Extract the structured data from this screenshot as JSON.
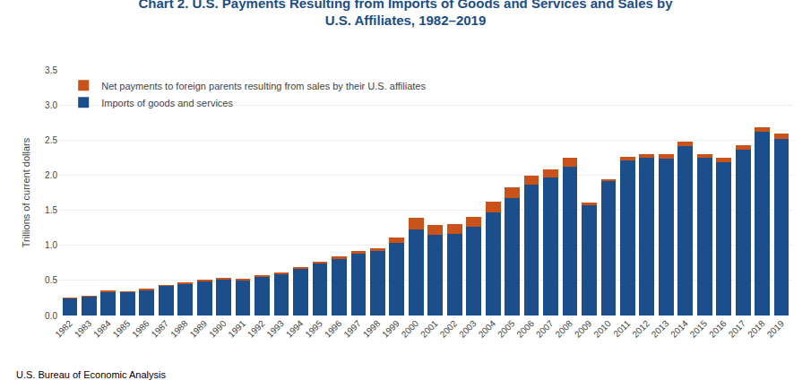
{
  "chart_data": {
    "type": "bar",
    "stacked": true,
    "title": "Chart 2. U.S. Payments Resulting from Imports of Goods and Services and Sales by\nU.S. Affiliates, 1982–2019",
    "ylabel": "Trillions of current dollars",
    "annotations": [
      "U.S. Bureau of Economic Analysis"
    ],
    "categories": [
      1982,
      1983,
      1984,
      1985,
      1986,
      1987,
      1988,
      1989,
      1990,
      1991,
      1992,
      1993,
      1994,
      1995,
      1996,
      1997,
      1998,
      1999,
      2000,
      2001,
      2002,
      2003,
      2004,
      2005,
      2006,
      2007,
      2008,
      2009,
      2010,
      2011,
      2012,
      2013,
      2014,
      2015,
      2016,
      2017,
      2018,
      2019
    ],
    "series": [
      {
        "name": "Imports of goods and services",
        "color": "#1b4e8a",
        "values": [
          0.247,
          0.269,
          0.341,
          0.338,
          0.368,
          0.424,
          0.459,
          0.493,
          0.516,
          0.508,
          0.553,
          0.589,
          0.668,
          0.75,
          0.803,
          0.876,
          0.918,
          1.03,
          1.224,
          1.145,
          1.163,
          1.26,
          1.473,
          1.675,
          1.861,
          1.968,
          2.117,
          1.565,
          1.913,
          2.21,
          2.25,
          2.238,
          2.414,
          2.243,
          2.186,
          2.361,
          2.615,
          2.519
        ]
      },
      {
        "name": "Net payments to foreign parents resulting from sales by their U.S. affiliates",
        "color": "#c8521a",
        "values": [
          0.004,
          0.005,
          0.006,
          0.006,
          0.007,
          0.008,
          0.013,
          0.016,
          0.017,
          0.018,
          0.018,
          0.019,
          0.02,
          0.022,
          0.035,
          0.038,
          0.043,
          0.078,
          0.165,
          0.14,
          0.143,
          0.145,
          0.15,
          0.155,
          0.13,
          0.12,
          0.13,
          0.04,
          0.035,
          0.055,
          0.055,
          0.06,
          0.06,
          0.06,
          0.06,
          0.065,
          0.07,
          0.075
        ]
      }
    ],
    "ylim": [
      0.0,
      3.5
    ],
    "yticks": [
      {
        "value": 0.0,
        "label": "0.0"
      },
      0.5,
      {
        "value": 1.0,
        "label": "1.0"
      },
      1.5,
      {
        "value": 2.0,
        "label": "2.0"
      },
      2.5,
      {
        "value": 3.0,
        "label": "3.0"
      },
      3.5
    ],
    "grid": true,
    "legend": "upper left"
  }
}
